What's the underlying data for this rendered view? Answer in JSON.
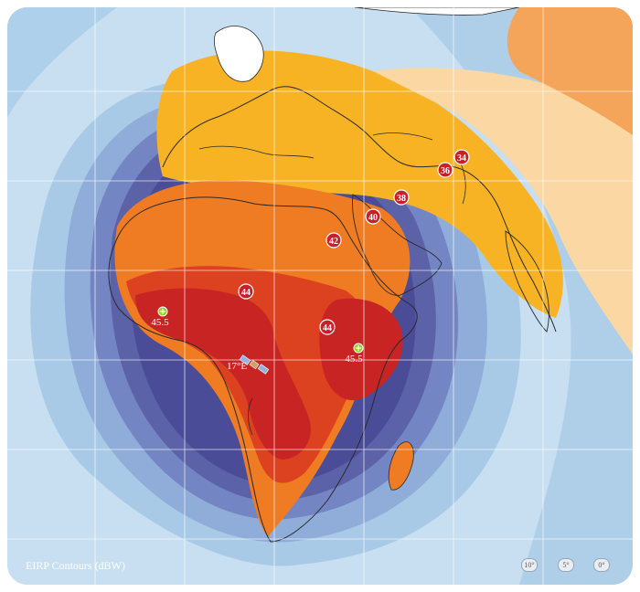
{
  "legend": {
    "title": "EIRP Contours (dBW)"
  },
  "satellite": {
    "position_label": "17°E"
  },
  "contour_labels": [
    "34",
    "36",
    "38",
    "40",
    "42",
    "44",
    "44"
  ],
  "peak_labels": [
    "45.5",
    "45.5"
  ],
  "scale_chips": [
    "10°",
    "5°",
    "0°"
  ],
  "colors": {
    "ocean": "#c7dff0",
    "land": "#ffffff",
    "contour_badge": "#c8202b",
    "peak_marker": "#9ccc2c",
    "bands": [
      "#a9cae6",
      "#7f9bcf",
      "#6675b8",
      "#4c4f9a",
      "#f7b324",
      "#ef7b22",
      "#d83b20",
      "#c82424"
    ]
  }
}
